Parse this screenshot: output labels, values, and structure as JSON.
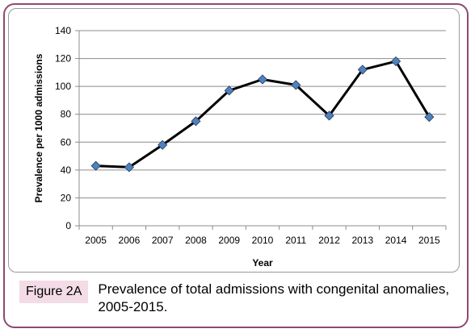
{
  "chart_data": {
    "type": "line",
    "x": [
      "2005",
      "2006",
      "2007",
      "2008",
      "2009",
      "2010",
      "2011",
      "2012",
      "2013",
      "2014",
      "2015"
    ],
    "series": [
      {
        "values": [
          43,
          42,
          58,
          75,
          97,
          105,
          101,
          79,
          112,
          118,
          78
        ],
        "color": "#000000",
        "marker_color": "#4f81bd"
      }
    ],
    "xlabel": "Year",
    "ylabel": "Prevalence per 1000 admissions",
    "ylim": [
      0,
      140
    ],
    "yticks": [
      0,
      20,
      40,
      60,
      80,
      100,
      120,
      140
    ],
    "grid": true,
    "marker": "diamond"
  },
  "caption": {
    "label": "Figure 2A",
    "text": "Prevalence of total admissions with congenital anomalies, 2005-2015."
  },
  "colors": {
    "frame": "#8b4a73",
    "label_bg": "#f3dce6",
    "gridline": "#8c8c8c"
  }
}
